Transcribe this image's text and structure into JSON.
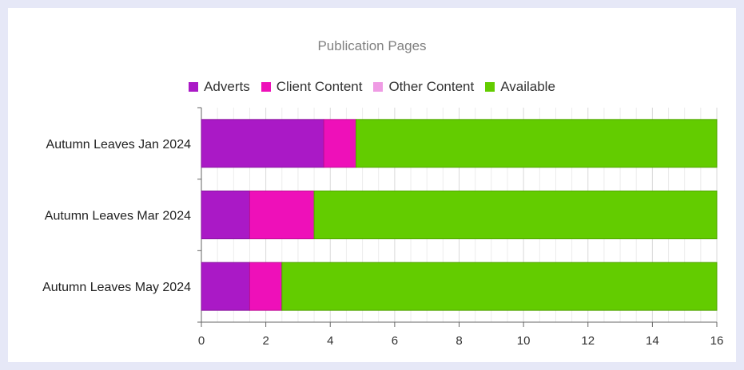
{
  "chart_data": {
    "type": "bar",
    "orientation": "horizontal",
    "stacked": true,
    "title": "Publication Pages",
    "categories": [
      "Autumn Leaves Jan 2024",
      "Autumn Leaves Mar 2024",
      "Autumn Leaves May 2024"
    ],
    "series": [
      {
        "name": "Adverts",
        "color": "#aa19c6",
        "values": [
          3.8,
          1.5,
          1.5
        ]
      },
      {
        "name": "Client Content",
        "color": "#ee10b9",
        "values": [
          1.0,
          2.0,
          1.0
        ]
      },
      {
        "name": "Other Content",
        "color": "#ef9be4",
        "values": [
          0,
          0,
          0
        ]
      },
      {
        "name": "Available",
        "color": "#63cc00",
        "values": [
          11.2,
          12.5,
          13.5
        ]
      }
    ],
    "xlim": [
      0,
      16
    ],
    "xticks": [
      "0",
      "2",
      "4",
      "6",
      "8",
      "10",
      "12",
      "14",
      "16"
    ],
    "legend_position": "top-center",
    "grid": true
  }
}
